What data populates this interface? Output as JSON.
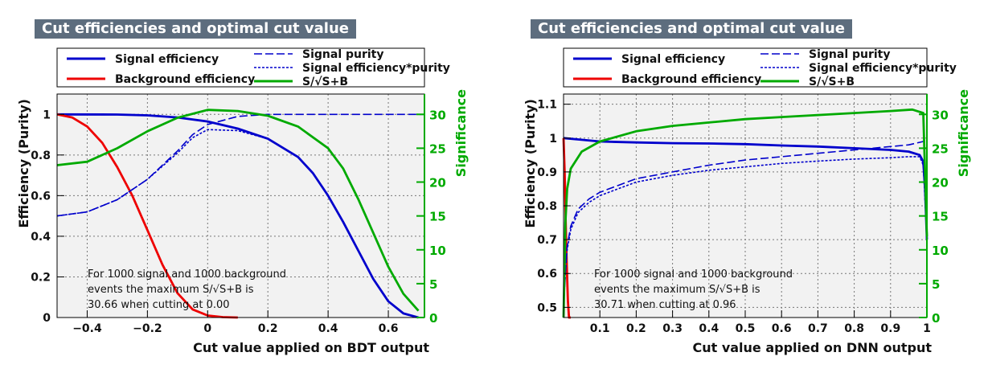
{
  "chart_data": [
    {
      "type": "line",
      "title": "Cut efficiencies and optimal cut value",
      "xlabel": "Cut value applied on BDT output",
      "ylabel": "Efficiency (Purity)",
      "y2label": "Significance",
      "xlim": [
        -0.5,
        0.72
      ],
      "ylim": [
        0,
        1.1
      ],
      "y2lim": [
        0,
        33
      ],
      "x_ticks": [
        -0.4,
        -0.2,
        0,
        0.2,
        0.4,
        0.6
      ],
      "x_tick_labels": [
        "−0.4",
        "−0.2",
        "0",
        "0.2",
        "0.4",
        "0.6"
      ],
      "y_ticks": [
        0,
        0.2,
        0.4,
        0.6,
        0.8,
        1
      ],
      "y_tick_labels": [
        "0",
        "0.2",
        "0.4",
        "0.6",
        "0.8",
        "1"
      ],
      "y2_ticks": [
        0,
        5,
        10,
        15,
        20,
        25,
        30
      ],
      "y2_tick_labels": [
        "0",
        "5",
        "10",
        "15",
        "20",
        "25",
        "30"
      ],
      "grid": true,
      "legend": {
        "position": "top",
        "entries": [
          "Signal efficiency",
          "Background efficiency",
          "Signal purity",
          "Signal efficiency*purity",
          "S/√S+B"
        ]
      },
      "annotation": [
        "For 1000 signal and 1000 background",
        "events the maximum S/√S+B is",
        "30.66 when cutting at  0.00"
      ],
      "series": [
        {
          "name": "Signal efficiency",
          "color": "#0000cc",
          "style": "solid",
          "axis": "left",
          "x": [
            -0.5,
            -0.3,
            -0.2,
            -0.1,
            0.0,
            0.1,
            0.2,
            0.3,
            0.35,
            0.4,
            0.45,
            0.5,
            0.55,
            0.6,
            0.65,
            0.7
          ],
          "y": [
            1.0,
            0.999,
            0.995,
            0.985,
            0.965,
            0.93,
            0.88,
            0.79,
            0.71,
            0.6,
            0.47,
            0.33,
            0.19,
            0.08,
            0.02,
            0.0
          ]
        },
        {
          "name": "Background efficiency",
          "color": "#ee0000",
          "style": "solid",
          "axis": "left",
          "x": [
            -0.5,
            -0.45,
            -0.4,
            -0.35,
            -0.3,
            -0.25,
            -0.2,
            -0.15,
            -0.1,
            -0.05,
            0.0,
            0.05,
            0.1
          ],
          "y": [
            1.0,
            0.985,
            0.94,
            0.86,
            0.74,
            0.6,
            0.43,
            0.26,
            0.12,
            0.04,
            0.01,
            0.002,
            0.0
          ]
        },
        {
          "name": "Signal purity",
          "color": "#0000cc",
          "style": "dashed",
          "axis": "left",
          "x": [
            -0.5,
            -0.4,
            -0.3,
            -0.2,
            -0.1,
            -0.05,
            0.0,
            0.1,
            0.2,
            0.4,
            0.6,
            0.72
          ],
          "y": [
            0.5,
            0.52,
            0.58,
            0.68,
            0.82,
            0.9,
            0.95,
            0.99,
            1.0,
            1.0,
            1.0,
            1.0
          ]
        },
        {
          "name": "Signal efficiency*purity",
          "color": "#0000cc",
          "style": "dotted",
          "axis": "left",
          "x": [
            -0.5,
            -0.4,
            -0.3,
            -0.2,
            -0.1,
            -0.05,
            0.0,
            0.1,
            0.2,
            0.3,
            0.35,
            0.4,
            0.45,
            0.5,
            0.55,
            0.6,
            0.65,
            0.7
          ],
          "y": [
            0.5,
            0.52,
            0.58,
            0.68,
            0.81,
            0.885,
            0.925,
            0.92,
            0.88,
            0.79,
            0.71,
            0.6,
            0.47,
            0.33,
            0.19,
            0.08,
            0.02,
            0.0
          ]
        },
        {
          "name": "S/√S+B",
          "color": "#00aa00",
          "style": "solid",
          "axis": "right",
          "x": [
            -0.5,
            -0.4,
            -0.3,
            -0.2,
            -0.1,
            0.0,
            0.1,
            0.2,
            0.3,
            0.4,
            0.45,
            0.5,
            0.55,
            0.6,
            0.65,
            0.7
          ],
          "y": [
            22.5,
            23,
            25,
            27.5,
            29.5,
            30.66,
            30.5,
            29.8,
            28.2,
            25,
            22,
            17.5,
            12.5,
            7.5,
            3.5,
            1
          ]
        }
      ]
    },
    {
      "type": "line",
      "title": "Cut efficiencies and optimal cut value",
      "xlabel": "Cut value applied on DNN output",
      "ylabel": "Efficiency (Purity)",
      "y2label": "Significance",
      "xlim": [
        0,
        1
      ],
      "ylim": [
        0.47,
        1.13
      ],
      "y2lim": [
        0,
        33
      ],
      "x_ticks": [
        0.1,
        0.2,
        0.3,
        0.4,
        0.5,
        0.6,
        0.7,
        0.8,
        0.9,
        1
      ],
      "x_tick_labels": [
        "0.1",
        "0.2",
        "0.3",
        "0.4",
        "0.5",
        "0.6",
        "0.7",
        "0.8",
        "0.9",
        "1"
      ],
      "y_ticks": [
        0.5,
        0.6,
        0.7,
        0.8,
        0.9,
        1,
        1.1
      ],
      "y_tick_labels": [
        "0.5",
        "0.6",
        "0.7",
        "0.8",
        "0.9",
        "1",
        "1.1"
      ],
      "y2_ticks": [
        0,
        5,
        10,
        15,
        20,
        25,
        30
      ],
      "y2_tick_labels": [
        "0",
        "5",
        "10",
        "15",
        "20",
        "25",
        "30"
      ],
      "grid": true,
      "legend": {
        "position": "top",
        "entries": [
          "Signal efficiency",
          "Background efficiency",
          "Signal purity",
          "Signal efficiency*purity",
          "S/√S+B"
        ]
      },
      "annotation": [
        "For 1000 signal and 1000 background",
        "events the maximum S/√S+B is",
        "30.71 when cutting at  0.96"
      ],
      "series": [
        {
          "name": "Signal efficiency",
          "color": "#0000cc",
          "style": "solid",
          "axis": "left",
          "x": [
            0.0,
            0.05,
            0.1,
            0.2,
            0.3,
            0.4,
            0.5,
            0.6,
            0.7,
            0.8,
            0.9,
            0.95,
            0.98,
            0.99,
            0.995,
            1.0
          ],
          "y": [
            1.0,
            0.995,
            0.99,
            0.987,
            0.985,
            0.984,
            0.982,
            0.978,
            0.975,
            0.97,
            0.965,
            0.96,
            0.95,
            0.93,
            0.85,
            0.7
          ]
        },
        {
          "name": "Background efficiency",
          "color": "#ee0000",
          "style": "solid",
          "axis": "left",
          "x": [
            0.0,
            0.003,
            0.006,
            0.009,
            0.012,
            0.015,
            0.02
          ],
          "y": [
            1.0,
            0.9,
            0.75,
            0.62,
            0.52,
            0.47,
            0.47
          ]
        },
        {
          "name": "Signal purity",
          "color": "#0000cc",
          "style": "dashed",
          "axis": "left",
          "x": [
            0.0,
            0.005,
            0.01,
            0.02,
            0.04,
            0.07,
            0.1,
            0.15,
            0.2,
            0.3,
            0.4,
            0.5,
            0.6,
            0.7,
            0.8,
            0.9,
            0.95,
            0.99,
            1.0
          ],
          "y": [
            0.5,
            0.6,
            0.68,
            0.74,
            0.79,
            0.82,
            0.84,
            0.86,
            0.88,
            0.9,
            0.92,
            0.935,
            0.945,
            0.955,
            0.965,
            0.975,
            0.98,
            0.99,
            0.995
          ]
        },
        {
          "name": "Signal efficiency*purity",
          "color": "#0000cc",
          "style": "dotted",
          "axis": "left",
          "x": [
            0.0,
            0.005,
            0.01,
            0.02,
            0.04,
            0.07,
            0.1,
            0.15,
            0.2,
            0.3,
            0.4,
            0.5,
            0.6,
            0.7,
            0.8,
            0.9,
            0.95,
            0.98,
            0.99,
            1.0
          ],
          "y": [
            0.5,
            0.6,
            0.67,
            0.73,
            0.78,
            0.81,
            0.83,
            0.85,
            0.87,
            0.89,
            0.905,
            0.915,
            0.925,
            0.932,
            0.938,
            0.942,
            0.945,
            0.945,
            0.92,
            0.7
          ]
        },
        {
          "name": "S/√S+B",
          "color": "#00aa00",
          "style": "solid",
          "axis": "right",
          "x": [
            0.0,
            0.005,
            0.01,
            0.02,
            0.05,
            0.1,
            0.2,
            0.3,
            0.4,
            0.5,
            0.6,
            0.7,
            0.8,
            0.9,
            0.96,
            0.99,
            1.0
          ],
          "y": [
            0,
            14,
            19,
            22,
            24.5,
            26,
            27.5,
            28.3,
            28.8,
            29.3,
            29.6,
            29.9,
            30.2,
            30.5,
            30.71,
            30.2,
            12
          ]
        }
      ]
    }
  ]
}
